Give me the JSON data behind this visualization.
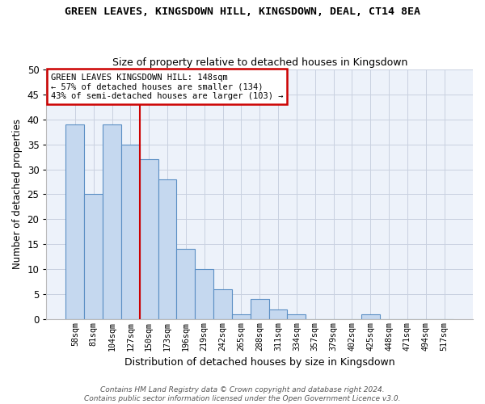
{
  "title": "GREEN LEAVES, KINGSDOWN HILL, KINGSDOWN, DEAL, CT14 8EA",
  "subtitle": "Size of property relative to detached houses in Kingsdown",
  "xlabel": "Distribution of detached houses by size in Kingsdown",
  "ylabel": "Number of detached properties",
  "bar_labels": [
    "58sqm",
    "81sqm",
    "104sqm",
    "127sqm",
    "150sqm",
    "173sqm",
    "196sqm",
    "219sqm",
    "242sqm",
    "265sqm",
    "288sqm",
    "311sqm",
    "334sqm",
    "357sqm",
    "379sqm",
    "402sqm",
    "425sqm",
    "448sqm",
    "471sqm",
    "494sqm",
    "517sqm"
  ],
  "bar_values": [
    39,
    25,
    39,
    35,
    32,
    28,
    14,
    10,
    6,
    1,
    4,
    2,
    1,
    0,
    0,
    0,
    1,
    0,
    0,
    0,
    0
  ],
  "bar_color": "#c5d8ef",
  "bar_edgecolor": "#5b8fc4",
  "vline_x": 4.0,
  "vline_color": "#cc0000",
  "ylim": [
    0,
    50
  ],
  "yticks": [
    0,
    5,
    10,
    15,
    20,
    25,
    30,
    35,
    40,
    45,
    50
  ],
  "annotation_title": "GREEN LEAVES KINGSDOWN HILL: 148sqm",
  "annotation_line1": "← 57% of detached houses are smaller (134)",
  "annotation_line2": "43% of semi-detached houses are larger (103) →",
  "annotation_box_color": "#cc0000",
  "footer_line1": "Contains HM Land Registry data © Crown copyright and database right 2024.",
  "footer_line2": "Contains public sector information licensed under the Open Government Licence v3.0.",
  "bg_color": "#edf2fa",
  "grid_color": "#c8d0e0"
}
